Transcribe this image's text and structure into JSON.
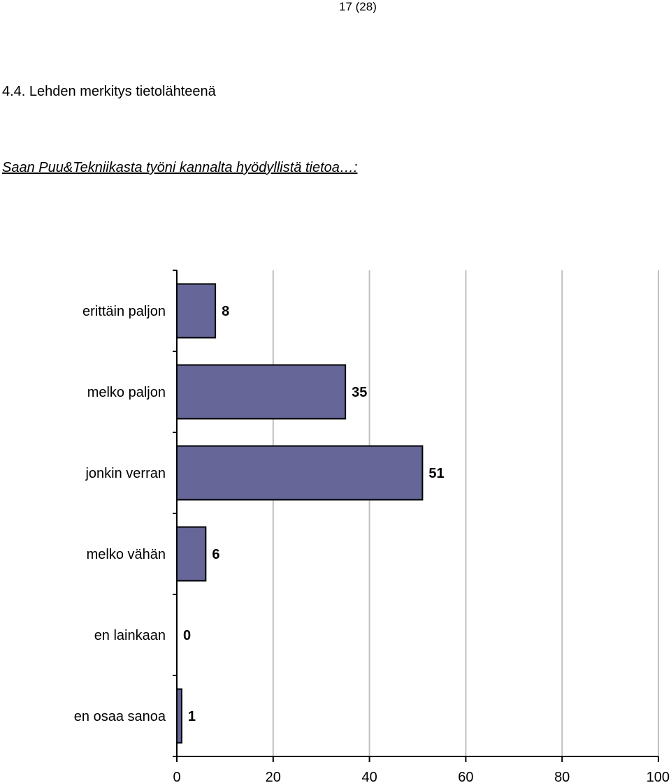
{
  "header": {
    "page_number": "17 (28)"
  },
  "section": {
    "heading": "4.4. Lehden merkitys tietolähteenä"
  },
  "question": {
    "text": "Saan Puu&Tekniikasta työni kannalta hyödyllistä tietoa…:"
  },
  "chart_data": {
    "type": "bar",
    "orientation": "horizontal",
    "categories": [
      "erittäin paljon",
      "melko paljon",
      "jonkin verran",
      "melko vähän",
      "en lainkaan",
      "en osaa sanoa"
    ],
    "values": [
      8,
      35,
      51,
      6,
      0,
      1
    ],
    "data_labels": [
      "8",
      "35",
      "51",
      "6",
      "0",
      "1"
    ],
    "title": "",
    "xlabel": "",
    "ylabel": "",
    "xlim": [
      0,
      100
    ],
    "x_ticks": [
      0,
      20,
      40,
      60,
      80,
      100
    ],
    "x_tick_labels": [
      "0",
      "20",
      "40",
      "60",
      "80",
      "100"
    ],
    "grid": "vertical",
    "legend": "none",
    "bar_color": "#666699",
    "grid_color": "#c0c0c0"
  }
}
